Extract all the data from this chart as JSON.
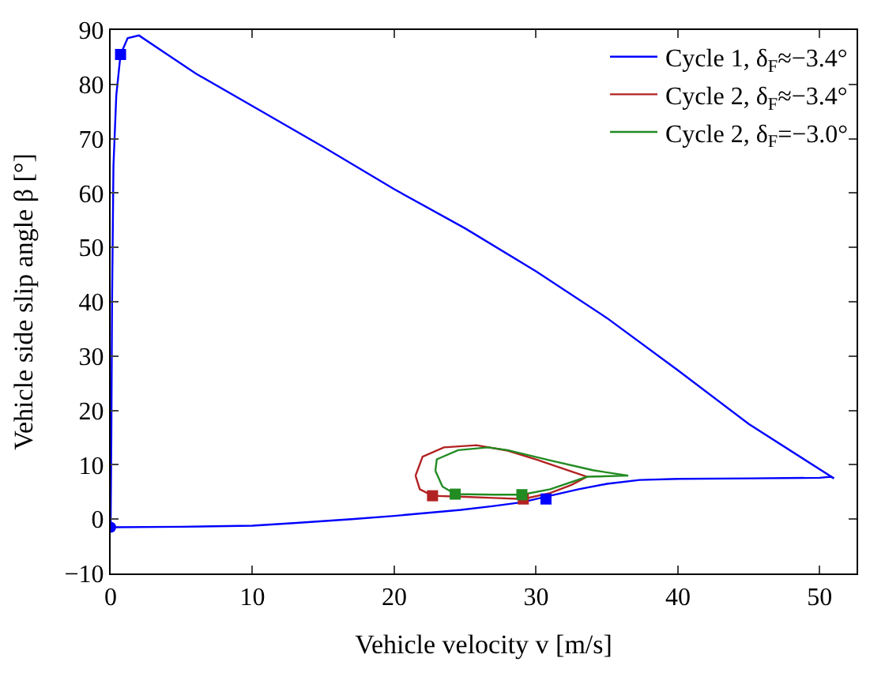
{
  "chart_data": {
    "type": "line",
    "xlabel": "Vehicle velocity v [m/s]",
    "ylabel": "Vehicle side slip angle β [°]",
    "xlim": [
      0,
      52.6
    ],
    "ylim": [
      -10,
      90
    ],
    "xticks": [
      0,
      10,
      20,
      30,
      40,
      50
    ],
    "yticks": [
      -10,
      0,
      10,
      20,
      30,
      40,
      50,
      60,
      70,
      80,
      90
    ],
    "legend": "top right",
    "line_style": "solid",
    "series": [
      {
        "name": "Cycle 1, δ$_{F}$≈−3.4°",
        "color": "#0000ff",
        "marker": "none",
        "x": [
          0,
          5,
          10,
          13.1,
          17,
          20,
          24.7,
          27,
          29,
          30.8,
          33,
          35,
          37.3,
          40,
          45,
          50,
          50.8,
          51
        ],
        "values": [
          -1.5,
          -1.4,
          -1.2,
          -0.7,
          0,
          0.6,
          1.7,
          2.4,
          3.1,
          4.2,
          5.5,
          6.5,
          7.2,
          7.4,
          7.5,
          7.6,
          7.8,
          7.5
        ]
      },
      {
        "color": "#0000ff",
        "marker": "none",
        "x": [
          51,
          45,
          40,
          35,
          30,
          25,
          20,
          15,
          10,
          6,
          4,
          2,
          1.2,
          0.7,
          0.4,
          0.2,
          0.1,
          0.05,
          0
        ],
        "values": [
          7.5,
          17.5,
          27.4,
          37,
          45.6,
          53.5,
          60.7,
          68.5,
          76,
          82,
          85.5,
          89,
          88.5,
          85.5,
          78,
          65,
          40,
          15,
          -1.5
        ]
      },
      {
        "name": "Cycle 2, δ$_{F}$≈−3.4°",
        "color": "#b22222",
        "marker": "none",
        "x": [
          21.5,
          21.8,
          22.7,
          25,
          27,
          29.1,
          31,
          32.5,
          33.6
        ],
        "values": [
          8,
          5.5,
          4.3,
          4.1,
          3.9,
          3.7,
          4.8,
          6.3,
          7.8
        ]
      },
      {
        "color": "#b22222",
        "marker": "none",
        "x": [
          33.6,
          32,
          30,
          28,
          25.8,
          23.5,
          22,
          21.5
        ],
        "values": [
          7.8,
          9.2,
          11,
          12.6,
          13.6,
          13.2,
          11.5,
          8
        ]
      },
      {
        "name": "Cycle 2, δ$_{F}$=−3.0°",
        "color": "#228b22",
        "marker": "none",
        "x": [
          22.9,
          23.4,
          24.3,
          27,
          29,
          31,
          33.6,
          36.5
        ],
        "values": [
          8.9,
          6,
          4.6,
          4.5,
          4.5,
          5.5,
          7.8,
          8
        ]
      },
      {
        "color": "#228b22",
        "marker": "none",
        "x": [
          36.5,
          34,
          31,
          28,
          26.6,
          24.5,
          23,
          22.9
        ],
        "values": [
          8,
          9,
          10.8,
          12.7,
          13.2,
          12.7,
          11,
          8.9
        ]
      },
      {
        "color": "#0000ff",
        "marker": "square",
        "type": "scatter",
        "x": [
          0.7,
          30.7
        ],
        "values": [
          85.5,
          3.7
        ]
      },
      {
        "color": "#0000ff",
        "marker": "circle",
        "type": "scatter",
        "x": [
          0
        ],
        "values": [
          -1.5
        ]
      },
      {
        "color": "#b22222",
        "marker": "square",
        "type": "scatter",
        "x": [
          22.7,
          29.1
        ],
        "values": [
          4.3,
          3.7
        ]
      },
      {
        "color": "#228b22",
        "marker": "square",
        "type": "scatter",
        "x": [
          24.3,
          29.0
        ],
        "values": [
          4.6,
          4.5
        ]
      }
    ]
  }
}
